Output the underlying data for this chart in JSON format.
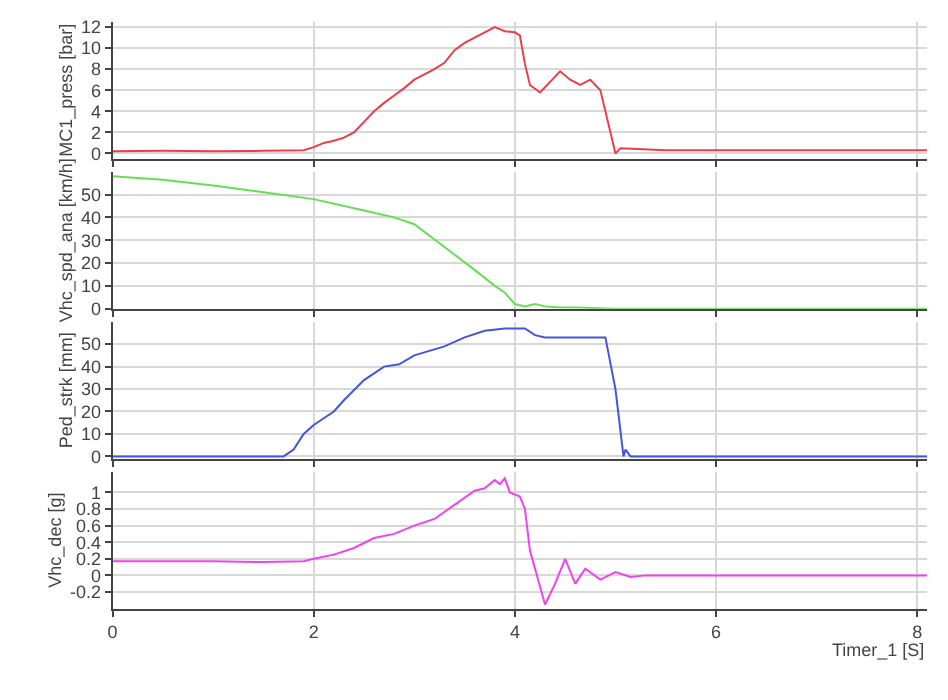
{
  "chart_data": [
    {
      "type": "line",
      "ylabel": "MC1_press [bar]",
      "xlim": [
        0,
        8.1
      ],
      "xticks": [
        0,
        2,
        4,
        6,
        8
      ],
      "ylim": [
        -0.5,
        12.5
      ],
      "yticks": [
        0,
        2,
        4,
        6,
        8,
        10,
        12
      ],
      "grid": true,
      "tick_labels": "y",
      "series": [
        {
          "color": "#e8404a",
          "x": [
            0,
            0.5,
            1,
            1.5,
            1.9,
            2.0,
            2.1,
            2.2,
            2.3,
            2.4,
            2.5,
            2.6,
            2.7,
            2.8,
            2.9,
            3.0,
            3.1,
            3.2,
            3.3,
            3.4,
            3.5,
            3.6,
            3.7,
            3.8,
            3.85,
            3.9,
            4.0,
            4.05,
            4.1,
            4.15,
            4.25,
            4.35,
            4.45,
            4.55,
            4.65,
            4.75,
            4.85,
            4.95,
            5.0,
            5.05,
            5.5,
            6,
            6.5,
            7,
            7.5,
            8.1
          ],
          "values": [
            0.2,
            0.25,
            0.2,
            0.25,
            0.3,
            0.6,
            1.0,
            1.2,
            1.5,
            2.0,
            3.0,
            4.0,
            4.8,
            5.5,
            6.2,
            7.0,
            7.5,
            8.0,
            8.6,
            9.8,
            10.5,
            11.0,
            11.5,
            12.0,
            11.8,
            11.6,
            11.5,
            11.2,
            8.5,
            6.5,
            5.8,
            6.8,
            7.8,
            7.0,
            6.5,
            7.0,
            6.0,
            2.0,
            0.0,
            0.5,
            0.3,
            0.3,
            0.3,
            0.3,
            0.3,
            0.3
          ]
        }
      ]
    },
    {
      "type": "line",
      "ylabel": "Vhc_spd_ana [km/h]",
      "xlim": [
        0,
        8.1
      ],
      "xticks": [
        0,
        2,
        4,
        6,
        8
      ],
      "ylim": [
        0,
        60
      ],
      "yticks": [
        0,
        10,
        20,
        30,
        40,
        50
      ],
      "grid": true,
      "tick_labels": "y",
      "series": [
        {
          "color": "#66dd55",
          "x": [
            0,
            0.5,
            1,
            1.5,
            2,
            2.5,
            2.8,
            3.0,
            3.3,
            3.6,
            3.8,
            3.9,
            4.0,
            4.1,
            4.2,
            4.3,
            4.45,
            4.6,
            5.0,
            6,
            7,
            8.1
          ],
          "values": [
            58,
            56.5,
            54,
            51,
            48,
            43,
            40,
            37,
            27,
            17,
            10,
            7,
            2,
            1,
            2,
            1,
            0.5,
            0.5,
            0,
            0,
            0,
            0
          ]
        }
      ]
    },
    {
      "type": "line",
      "ylabel": "Ped_strk [mm]",
      "xlim": [
        0,
        8.1
      ],
      "xticks": [
        0,
        2,
        4,
        6,
        8
      ],
      "ylim": [
        -1,
        60
      ],
      "yticks": [
        0,
        10,
        20,
        30,
        40,
        50
      ],
      "grid": true,
      "tick_labels": "y",
      "series": [
        {
          "color": "#4455dd",
          "x": [
            0,
            1,
            1.7,
            1.8,
            1.9,
            2.0,
            2.2,
            2.3,
            2.5,
            2.7,
            2.85,
            3.0,
            3.3,
            3.5,
            3.7,
            3.9,
            4.1,
            4.2,
            4.3,
            4.9,
            5.0,
            5.08,
            5.1,
            5.15,
            5.5,
            6,
            7,
            8.1
          ],
          "values": [
            0,
            0,
            0,
            3,
            10,
            14,
            20,
            25,
            34,
            40,
            41,
            45,
            49,
            53,
            56,
            57,
            57,
            54,
            53,
            53,
            30,
            0,
            3,
            0,
            0,
            0,
            0,
            0
          ]
        }
      ]
    },
    {
      "type": "line",
      "ylabel": "Vhc_dec [g]",
      "xlabel": "Timer_1 [S]",
      "xlim": [
        0,
        8.1
      ],
      "xticks": [
        0,
        2,
        4,
        6,
        8
      ],
      "ylim": [
        -0.4,
        1.25
      ],
      "yticks": [
        -0.2,
        0,
        0.2,
        0.4,
        0.6,
        0.8,
        1
      ],
      "grid": true,
      "series": [
        {
          "color": "#ee44ee",
          "x": [
            0,
            0.5,
            1,
            1.5,
            1.9,
            2.0,
            2.2,
            2.4,
            2.6,
            2.8,
            3.0,
            3.2,
            3.4,
            3.6,
            3.7,
            3.8,
            3.85,
            3.9,
            3.95,
            4.05,
            4.1,
            4.15,
            4.3,
            4.4,
            4.5,
            4.6,
            4.7,
            4.85,
            5.0,
            5.15,
            5.3,
            6,
            7,
            8.1
          ],
          "values": [
            0.17,
            0.17,
            0.17,
            0.16,
            0.17,
            0.2,
            0.25,
            0.33,
            0.45,
            0.5,
            0.6,
            0.68,
            0.85,
            1.02,
            1.05,
            1.15,
            1.1,
            1.17,
            1.0,
            0.95,
            0.8,
            0.3,
            -0.35,
            -0.1,
            0.2,
            -0.1,
            0.08,
            -0.05,
            0.04,
            -0.02,
            0,
            0,
            0,
            0
          ]
        }
      ]
    }
  ]
}
